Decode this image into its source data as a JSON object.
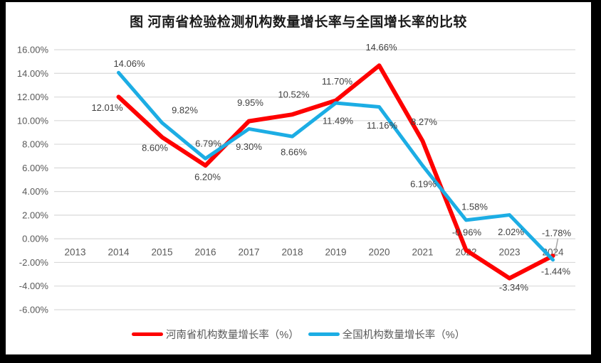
{
  "chart_data": {
    "type": "line",
    "title": "图  河南省检验检测机构数量增长率与全国增长率的比较",
    "categories": [
      "2013",
      "2014",
      "2015",
      "2016",
      "2017",
      "2018",
      "2019",
      "2020",
      "2021",
      "2022",
      "2023",
      "2024"
    ],
    "y_tick_labels": [
      "16.00%",
      "14.00%",
      "12.00%",
      "10.00%",
      "8.00%",
      "6.00%",
      "4.00%",
      "2.00%",
      "0.00%",
      "-2.00%",
      "-4.00%",
      "-6.00%"
    ],
    "ylim": [
      -6,
      16
    ],
    "y_step": 2,
    "grid": true,
    "legend_position": "bottom",
    "gridline_color": "#D9D9D9",
    "axis_text_color": "#595959",
    "label_text_color": "#404040",
    "leader_line_color": "#A6A6A6",
    "series": [
      {
        "name": "河南省机构数量增长率（%）",
        "color": "#FE0000",
        "stroke_width": 6,
        "values": [
          null,
          12.01,
          8.6,
          6.2,
          9.95,
          10.52,
          11.7,
          14.66,
          8.27,
          -0.96,
          -3.34,
          -1.44
        ],
        "point_labels": [
          null,
          "12.01%",
          "8.60%",
          "6.20%",
          "9.95%",
          "10.52%",
          "11.70%",
          "14.66%",
          "8.27%",
          "-0.96%",
          "-3.34%",
          "-1.44%"
        ],
        "label_offsets": [
          null,
          [
            -16,
            15
          ],
          [
            -10,
            15
          ],
          [
            3,
            16
          ],
          [
            2,
            -26
          ],
          [
            2,
            -28
          ],
          [
            2,
            -27
          ],
          [
            3,
            -26
          ],
          [
            2,
            -27
          ],
          [
            1,
            -25
          ],
          [
            6,
            13
          ],
          [
            4,
            22
          ]
        ]
      },
      {
        "name": "全国机构数量增长率（%）",
        "color": "#1CADE4",
        "stroke_width": 5,
        "values": [
          null,
          14.06,
          9.82,
          6.79,
          9.3,
          8.66,
          11.49,
          11.16,
          6.19,
          1.58,
          2.02,
          -1.78
        ],
        "point_labels": [
          null,
          "14.06%",
          "9.82%",
          "6.79%",
          "9.30%",
          "8.66%",
          "11.49%",
          "11.16%",
          "6.19%",
          "1.58%",
          "2.02%",
          "-1.78%"
        ],
        "label_offsets": [
          null,
          [
            15,
            -13
          ],
          [
            32,
            -18
          ],
          [
            4,
            -21
          ],
          [
            0,
            25
          ],
          [
            2,
            22
          ],
          [
            3,
            25
          ],
          [
            4,
            26
          ],
          [
            1,
            26
          ],
          [
            12,
            -19
          ],
          [
            2,
            24
          ],
          [
            5,
            -38
          ]
        ],
        "leader_line_at": 11
      }
    ]
  }
}
